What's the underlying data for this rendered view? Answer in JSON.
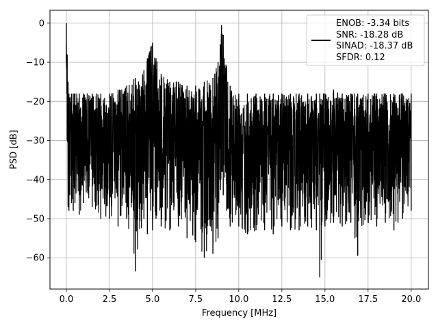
{
  "chart_data": {
    "type": "line",
    "title": "",
    "xlabel": "Frequency [MHz]",
    "ylabel": "PSD [dB]",
    "xlim": [
      -0.95,
      21.0
    ],
    "ylim": [
      -68.0,
      3.3
    ],
    "x_ticks": [
      0.0,
      2.5,
      5.0,
      7.5,
      10.0,
      12.5,
      15.0,
      17.5,
      20.0
    ],
    "x_tick_labels": [
      "0.0",
      "2.5",
      "5.0",
      "7.5",
      "10.0",
      "12.5",
      "15.0",
      "17.5",
      "20.0"
    ],
    "y_ticks": [
      0,
      -10,
      -20,
      -30,
      -40,
      -50,
      -60
    ],
    "y_tick_labels": [
      "0",
      "−10",
      "−20",
      "−30",
      "−40",
      "−50",
      "−60"
    ],
    "grid": true,
    "legend_position": "top-right",
    "line_color": "#000000",
    "series": [
      {
        "x": [
          0.0,
          0.05,
          0.1,
          0.15,
          0.2,
          0.3,
          0.4,
          0.5,
          0.75,
          1.0,
          1.5,
          2.0,
          2.5,
          3.0,
          3.5,
          4.0,
          4.5,
          4.7,
          4.9,
          5.0,
          5.2,
          5.5,
          6.0,
          6.5,
          7.0,
          7.5,
          8.0,
          8.5,
          8.8,
          9.0,
          9.1,
          9.3,
          9.5,
          10.0,
          10.5,
          11.0,
          11.5,
          12.0,
          12.5,
          13.0,
          13.5,
          14.0,
          14.5,
          14.7,
          15.0,
          15.5,
          16.0,
          16.5,
          16.9,
          17.5,
          18.0,
          18.5,
          19.0,
          19.5,
          20.0
        ],
        "y_upper": [
          0,
          -8,
          -15,
          -18,
          -19,
          -18,
          -18,
          -18,
          -18,
          -18,
          -18,
          -18,
          -18,
          -17,
          -16,
          -14,
          -12,
          -9,
          -6,
          -5,
          -9,
          -13,
          -15,
          -15,
          -16,
          -16,
          -15,
          -14,
          -10,
          -0.5,
          -3,
          -11,
          -16,
          -18,
          -18,
          -18,
          -18,
          -18,
          -18,
          -18,
          -18,
          -18,
          -18,
          -18,
          -18,
          -17,
          -18,
          -18,
          -18,
          -18,
          -18,
          -18,
          -18,
          -18,
          -18
        ],
        "y_lower": [
          -10,
          -30,
          -47,
          -48,
          -44,
          -46,
          -48,
          -46,
          -49,
          -46,
          -47,
          -50,
          -50,
          -52,
          -50,
          -63.5,
          -50,
          -54,
          -48,
          -53,
          -50,
          -52,
          -53,
          -52,
          -55,
          -56,
          -60,
          -59,
          -55,
          -38,
          -44,
          -48,
          -52,
          -52,
          -54,
          -53,
          -53,
          -54,
          -52,
          -53,
          -53,
          -52,
          -53,
          -65,
          -52,
          -51,
          -52,
          -51,
          -59.5,
          -51,
          -52,
          -51,
          -53,
          -50,
          -48
        ]
      }
    ],
    "legend": [
      "ENOB: -3.34 bits",
      "SNR: -18.28 dB",
      "SINAD: -18.37 dB",
      "SFDR: 0.12"
    ]
  }
}
